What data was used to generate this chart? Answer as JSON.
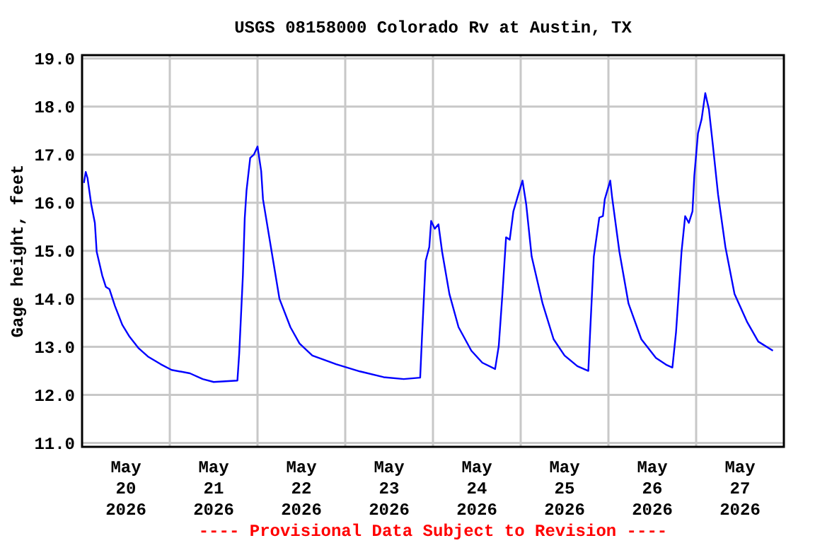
{
  "chart_data": {
    "type": "line",
    "title": "USGS 08158000 Colorado Rv at Austin, TX",
    "ylabel": "Gage height, feet",
    "annotations": [
      "---- Provisional Data Subject to Revision ----"
    ],
    "xlim": [
      "2026-05-20T00:00",
      "2026-05-28T00:00"
    ],
    "ylim": [
      10.92,
      19.07
    ],
    "yticks": [
      {
        "value": 11,
        "label": "11.0"
      },
      {
        "value": 12,
        "label": "12.0"
      },
      {
        "value": 13,
        "label": "13.0"
      },
      {
        "value": 14,
        "label": "14.0"
      },
      {
        "value": 15,
        "label": "15.0"
      },
      {
        "value": 16,
        "label": "16.0"
      },
      {
        "value": 17,
        "label": "17.0"
      },
      {
        "value": 18,
        "label": "18.0"
      },
      {
        "value": 19,
        "label": "19.0"
      }
    ],
    "xticks": [
      {
        "value": "2026-05-20T12:00",
        "label": "May\n20\n2026"
      },
      {
        "value": "2026-05-21T00:00",
        "label": null
      },
      {
        "value": "2026-05-21T12:00",
        "label": "May\n21\n2026"
      },
      {
        "value": "2026-05-22T00:00",
        "label": null
      },
      {
        "value": "2026-05-22T12:00",
        "label": "May\n22\n2026"
      },
      {
        "value": "2026-05-23T00:00",
        "label": null
      },
      {
        "value": "2026-05-23T12:00",
        "label": "May\n23\n2026"
      },
      {
        "value": "2026-05-24T00:00",
        "label": null
      },
      {
        "value": "2026-05-24T12:00",
        "label": "May\n24\n2026"
      },
      {
        "value": "2026-05-25T00:00",
        "label": null
      },
      {
        "value": "2026-05-25T12:00",
        "label": "May\n25\n2026"
      },
      {
        "value": "2026-05-26T00:00",
        "label": null
      },
      {
        "value": "2026-05-26T12:00",
        "label": "May\n26\n2026"
      },
      {
        "value": "2026-05-27T00:00",
        "label": null
      },
      {
        "value": "2026-05-27T12:00",
        "label": "May\n27\n2026"
      }
    ],
    "grid": true,
    "marker": "none",
    "line_style": "solid",
    "series": [
      {
        "color": "#0000ff",
        "x": [
          "2026-05-20T00:30",
          "2026-05-20T01:00",
          "2026-05-20T01:30",
          "2026-05-20T02:30",
          "2026-05-20T03:30",
          "2026-05-20T04:00",
          "2026-05-20T05:30",
          "2026-05-20T06:30",
          "2026-05-20T07:30",
          "2026-05-20T09:00",
          "2026-05-20T11:00",
          "2026-05-20T13:00",
          "2026-05-20T15:30",
          "2026-05-20T18:00",
          "2026-05-20T21:30",
          "2026-05-21T00:30",
          "2026-05-21T05:30",
          "2026-05-21T09:00",
          "2026-05-21T12:00",
          "2026-05-21T18:30",
          "2026-05-21T19:00",
          "2026-05-21T20:00",
          "2026-05-21T20:30",
          "2026-05-21T21:00",
          "2026-05-21T22:00",
          "2026-05-21T23:00",
          "2026-05-22T00:00",
          "2026-05-22T01:00",
          "2026-05-22T01:30",
          "2026-05-22T03:00",
          "2026-05-22T04:30",
          "2026-05-22T06:00",
          "2026-05-22T09:00",
          "2026-05-22T11:30",
          "2026-05-22T15:00",
          "2026-05-22T21:30",
          "2026-05-23T04:00",
          "2026-05-23T10:30",
          "2026-05-23T16:00",
          "2026-05-23T20:30",
          "2026-05-23T21:00",
          "2026-05-23T22:00",
          "2026-05-23T23:00",
          "2026-05-23T23:30",
          "2026-05-24T00:30",
          "2026-05-24T01:30",
          "2026-05-24T02:30",
          "2026-05-24T04:30",
          "2026-05-24T07:00",
          "2026-05-24T10:30",
          "2026-05-24T13:30",
          "2026-05-24T17:00",
          "2026-05-24T18:00",
          "2026-05-24T19:00",
          "2026-05-24T20:00",
          "2026-05-24T21:00",
          "2026-05-24T22:00",
          "2026-05-24T23:30",
          "2026-05-25T00:30",
          "2026-05-25T01:30",
          "2026-05-25T03:00",
          "2026-05-25T06:00",
          "2026-05-25T09:00",
          "2026-05-25T12:00",
          "2026-05-25T15:30",
          "2026-05-25T18:30",
          "2026-05-25T19:00",
          "2026-05-25T20:00",
          "2026-05-25T21:30",
          "2026-05-25T22:30",
          "2026-05-25T23:00",
          "2026-05-26T00:30",
          "2026-05-26T01:00",
          "2026-05-26T03:00",
          "2026-05-26T05:30",
          "2026-05-26T09:00",
          "2026-05-26T13:00",
          "2026-05-26T16:00",
          "2026-05-26T17:30",
          "2026-05-26T18:30",
          "2026-05-26T20:00",
          "2026-05-26T21:00",
          "2026-05-26T22:00",
          "2026-05-26T23:00",
          "2026-05-26T23:30",
          "2026-05-27T00:30",
          "2026-05-27T01:30",
          "2026-05-27T02:30",
          "2026-05-27T03:30",
          "2026-05-27T04:30",
          "2026-05-27T06:00",
          "2026-05-27T08:00",
          "2026-05-27T10:30",
          "2026-05-27T14:00",
          "2026-05-27T17:00",
          "2026-05-27T21:00"
        ],
        "values": [
          16.41,
          16.64,
          16.51,
          15.97,
          15.58,
          14.98,
          14.49,
          14.25,
          14.2,
          13.85,
          13.46,
          13.21,
          12.97,
          12.8,
          12.64,
          12.52,
          12.45,
          12.33,
          12.27,
          12.3,
          12.87,
          14.49,
          15.67,
          16.26,
          16.93,
          17.0,
          17.17,
          16.66,
          16.07,
          15.38,
          14.69,
          14.0,
          13.41,
          13.07,
          12.82,
          12.64,
          12.49,
          12.37,
          12.33,
          12.36,
          13.21,
          14.79,
          15.08,
          15.62,
          15.46,
          15.55,
          14.98,
          14.1,
          13.41,
          12.92,
          12.67,
          12.54,
          13.02,
          14.1,
          15.28,
          15.23,
          15.82,
          16.21,
          16.46,
          15.97,
          14.88,
          13.9,
          13.16,
          12.82,
          12.6,
          12.5,
          13.31,
          14.88,
          15.69,
          15.72,
          16.07,
          16.46,
          16.12,
          14.98,
          13.9,
          13.16,
          12.77,
          12.62,
          12.57,
          13.31,
          14.98,
          15.72,
          15.58,
          15.82,
          16.56,
          17.44,
          17.74,
          18.28,
          17.94,
          17.25,
          16.17,
          15.08,
          14.1,
          13.51,
          13.11,
          12.92
        ]
      }
    ]
  }
}
